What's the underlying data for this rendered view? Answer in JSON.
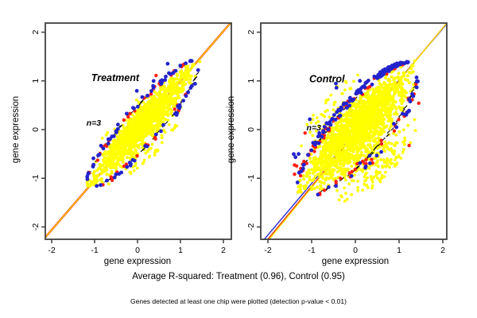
{
  "captions": {
    "r_squared": "Average R-squared: Treatment (0.96), Control (0.95)",
    "footnote": "Genes detected at least one chip were plotted (detection p-value < 0.01)"
  },
  "palette": {
    "point_yellow": "#ffff00",
    "point_blue": "#2323cc",
    "point_red": "#ff1f10",
    "dash_black": "#101010",
    "axis": "#3f3f3f",
    "panel_label_gray": "#8a8a8a",
    "annotation_black": "#000000",
    "background": "#ffffff"
  },
  "chart_data": [
    {
      "type": "scatter",
      "panel": "Treatment",
      "panel_label": {
        "text": "Treatment",
        "x": -0.52,
        "y": 1.0
      },
      "annotation": {
        "text": "n=3",
        "x": -1.02,
        "y": 0.08
      },
      "xlabel": "gene expression",
      "ylabel": "gene expression",
      "xlim": [
        -2.15,
        2.19
      ],
      "ylim": [
        -2.25,
        2.19
      ],
      "xticks": [
        -2,
        -1,
        0,
        1,
        2
      ],
      "yticks": [
        -2,
        -1,
        0,
        1,
        2
      ],
      "grid": false,
      "r_squared": 0.96,
      "identity_lines": [
        {
          "color": "#ee3300",
          "width": 2.4,
          "slope": 1.02,
          "intercept": -0.02
        },
        {
          "color": "#ffe800",
          "width": 1.1,
          "slope": 1.02,
          "intercept": -0.02
        }
      ],
      "cloud": {
        "seed": 101,
        "center": 0.12,
        "half_length": 1.28,
        "max_half_width": 0.33,
        "lower_asymmetry": 1.15,
        "blue_upper_bias": 0.55,
        "spray_below_extra": 0.5,
        "points": {
          "yellow": 1300,
          "spray": 70,
          "blue": 80,
          "red": 52,
          "black_dashes": 55
        }
      }
    },
    {
      "type": "scatter",
      "panel": "Control",
      "panel_label": {
        "text": "Control",
        "x": -0.65,
        "y": 0.97
      },
      "annotation": {
        "text": "n=3",
        "x": -0.95,
        "y": -0.02
      },
      "xlabel": "gene expression",
      "ylabel": "gene expression",
      "xlim": [
        -2.16,
        2.09
      ],
      "ylim": [
        -2.25,
        2.19
      ],
      "xticks": [
        -2,
        -1,
        0,
        1,
        2
      ],
      "yticks": [
        -2,
        -1,
        0,
        1,
        2
      ],
      "grid": false,
      "r_squared": 0.95,
      "identity_lines": [
        {
          "color": "#2a2ad0",
          "width": 1.4,
          "slope": 1.06,
          "intercept": -0.045
        },
        {
          "color": "#ee3300",
          "width": 1.4,
          "slope": 1.085,
          "intercept": -0.08
        },
        {
          "color": "#ffe800",
          "width": 1.3,
          "slope": 1.094,
          "intercept": -0.1
        }
      ],
      "cloud": {
        "seed": 202,
        "center": 0.03,
        "half_length": 1.3,
        "max_half_width": 0.46,
        "lower_asymmetry": 1.3,
        "blue_upper_bias": 0.78,
        "spray_below_extra": 0.8,
        "points": {
          "yellow": 1700,
          "spray": 280,
          "blue": 165,
          "red": 95,
          "black_dashes": 70
        }
      }
    }
  ]
}
